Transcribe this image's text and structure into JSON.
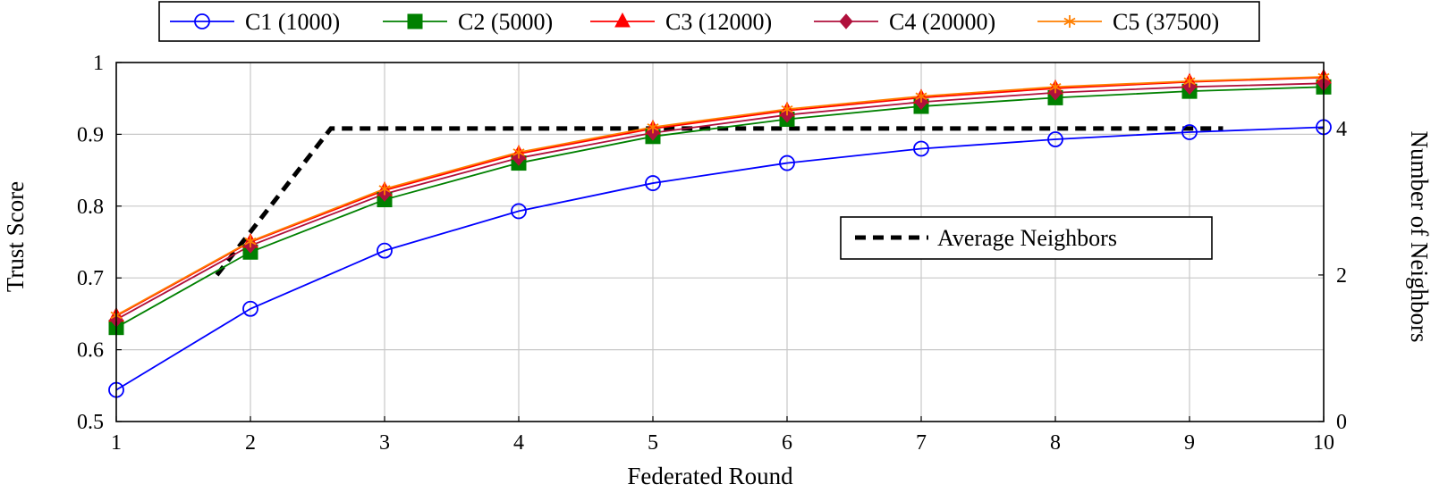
{
  "chart_data": {
    "type": "line",
    "xlabel": "Federated Round",
    "ylabel": "Trust Score",
    "y2label": "Number of Neighbors",
    "x": [
      1,
      2,
      3,
      4,
      5,
      6,
      7,
      8,
      9,
      10
    ],
    "xticks": [
      "1",
      "2",
      "3",
      "4",
      "5",
      "6",
      "7",
      "8",
      "9",
      "10"
    ],
    "xlim": [
      1,
      10
    ],
    "ylim": [
      0.5,
      1.0
    ],
    "yticks": [
      "0.5",
      "0.6",
      "0.7",
      "0.8",
      "0.9",
      "1"
    ],
    "y2lim": [
      0,
      4.9
    ],
    "y2ticks": [
      "0",
      "2",
      "4"
    ],
    "grid": true,
    "legend_position": "top-center",
    "series": [
      {
        "name": "C1 (1000)",
        "color": "#0000ff",
        "marker": "circle-open",
        "values": [
          0.544,
          0.657,
          0.738,
          0.793,
          0.832,
          0.86,
          0.88,
          0.893,
          0.903,
          0.91
        ]
      },
      {
        "name": "C2 (5000)",
        "color": "#008000",
        "marker": "square-filled",
        "values": [
          0.631,
          0.736,
          0.809,
          0.86,
          0.897,
          0.921,
          0.939,
          0.951,
          0.96,
          0.966
        ]
      },
      {
        "name": "C3 (12000)",
        "color": "#ff0000",
        "marker": "triangle-filled",
        "values": [
          0.647,
          0.75,
          0.822,
          0.873,
          0.908,
          0.933,
          0.951,
          0.964,
          0.973,
          0.979
        ]
      },
      {
        "name": "C4 (20000)",
        "color": "#b0103c",
        "marker": "diamond-filled",
        "values": [
          0.642,
          0.745,
          0.817,
          0.867,
          0.902,
          0.927,
          0.945,
          0.958,
          0.966,
          0.971
        ]
      },
      {
        "name": "C5 (37500)",
        "color": "#ff7f00",
        "marker": "star",
        "values": [
          0.648,
          0.751,
          0.824,
          0.875,
          0.91,
          0.935,
          0.953,
          0.966,
          0.974,
          0.98
        ]
      }
    ],
    "secondary_series": {
      "name": "Average Neighbors",
      "color": "#000000",
      "style": "dashed",
      "x": [
        1.75,
        2.6,
        9.25
      ],
      "values": [
        2.0,
        4.0,
        4.0
      ]
    }
  }
}
